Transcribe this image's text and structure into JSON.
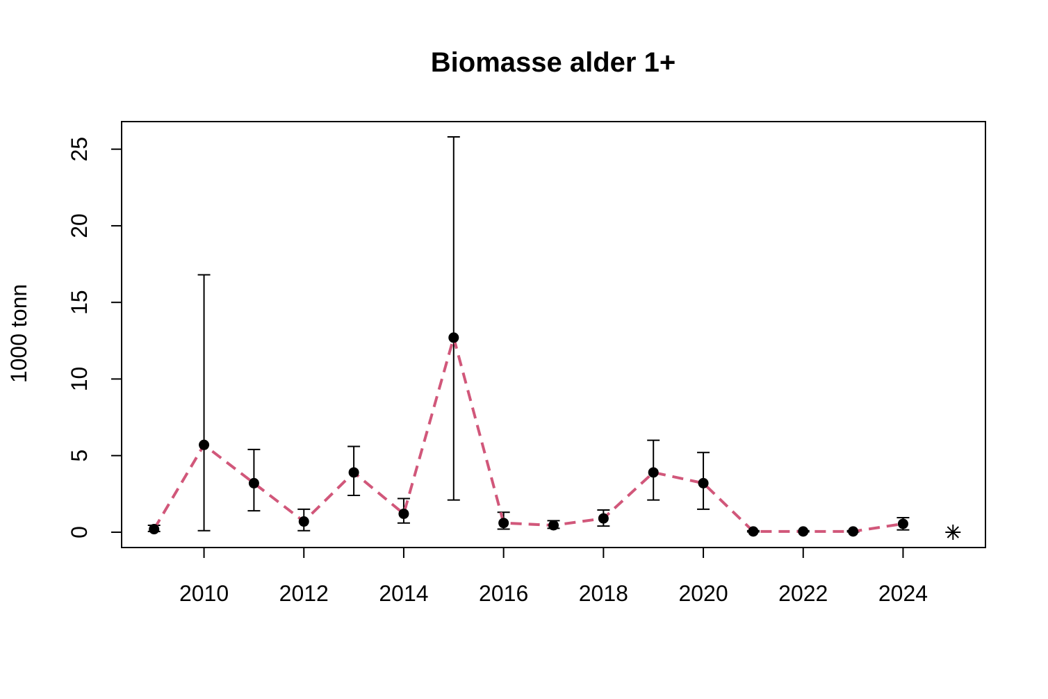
{
  "chart_data": {
    "type": "line",
    "title": "Biomasse alder 1+",
    "xlabel": "",
    "ylabel": "1000 tonn",
    "xlim": [
      2008.35,
      2025.65
    ],
    "ylim": [
      -1.0,
      26.8
    ],
    "x_ticks": [
      2010,
      2012,
      2014,
      2016,
      2018,
      2020,
      2022,
      2024
    ],
    "y_ticks": [
      0,
      5,
      10,
      15,
      20,
      25
    ],
    "grid": false,
    "legend": "none",
    "series": [
      {
        "x": [
          2009,
          2010,
          2011,
          2012,
          2013,
          2014,
          2015,
          2016,
          2017,
          2018,
          2019,
          2020,
          2021,
          2022,
          2023,
          2024
        ],
        "values": [
          0.2,
          5.7,
          3.2,
          0.7,
          3.9,
          1.2,
          12.7,
          0.6,
          0.45,
          0.9,
          3.9,
          3.2,
          0.05,
          0.05,
          0.05,
          0.55
        ],
        "lower": [
          0.05,
          0.1,
          1.4,
          0.1,
          2.4,
          0.6,
          2.1,
          0.2,
          0.25,
          0.4,
          2.1,
          1.5,
          0.02,
          0.02,
          0.02,
          0.15
        ],
        "upper": [
          0.45,
          16.8,
          5.4,
          1.5,
          5.6,
          2.2,
          25.8,
          1.3,
          0.75,
          1.45,
          6.0,
          5.2,
          0.1,
          0.1,
          0.1,
          0.95
        ]
      }
    ],
    "extra_points": [
      {
        "x": 2025,
        "value": 0.0,
        "marker": "asterisk"
      }
    ],
    "colors": {
      "line": "#d1577a",
      "points": "#000000",
      "errorbars": "#000000"
    }
  }
}
